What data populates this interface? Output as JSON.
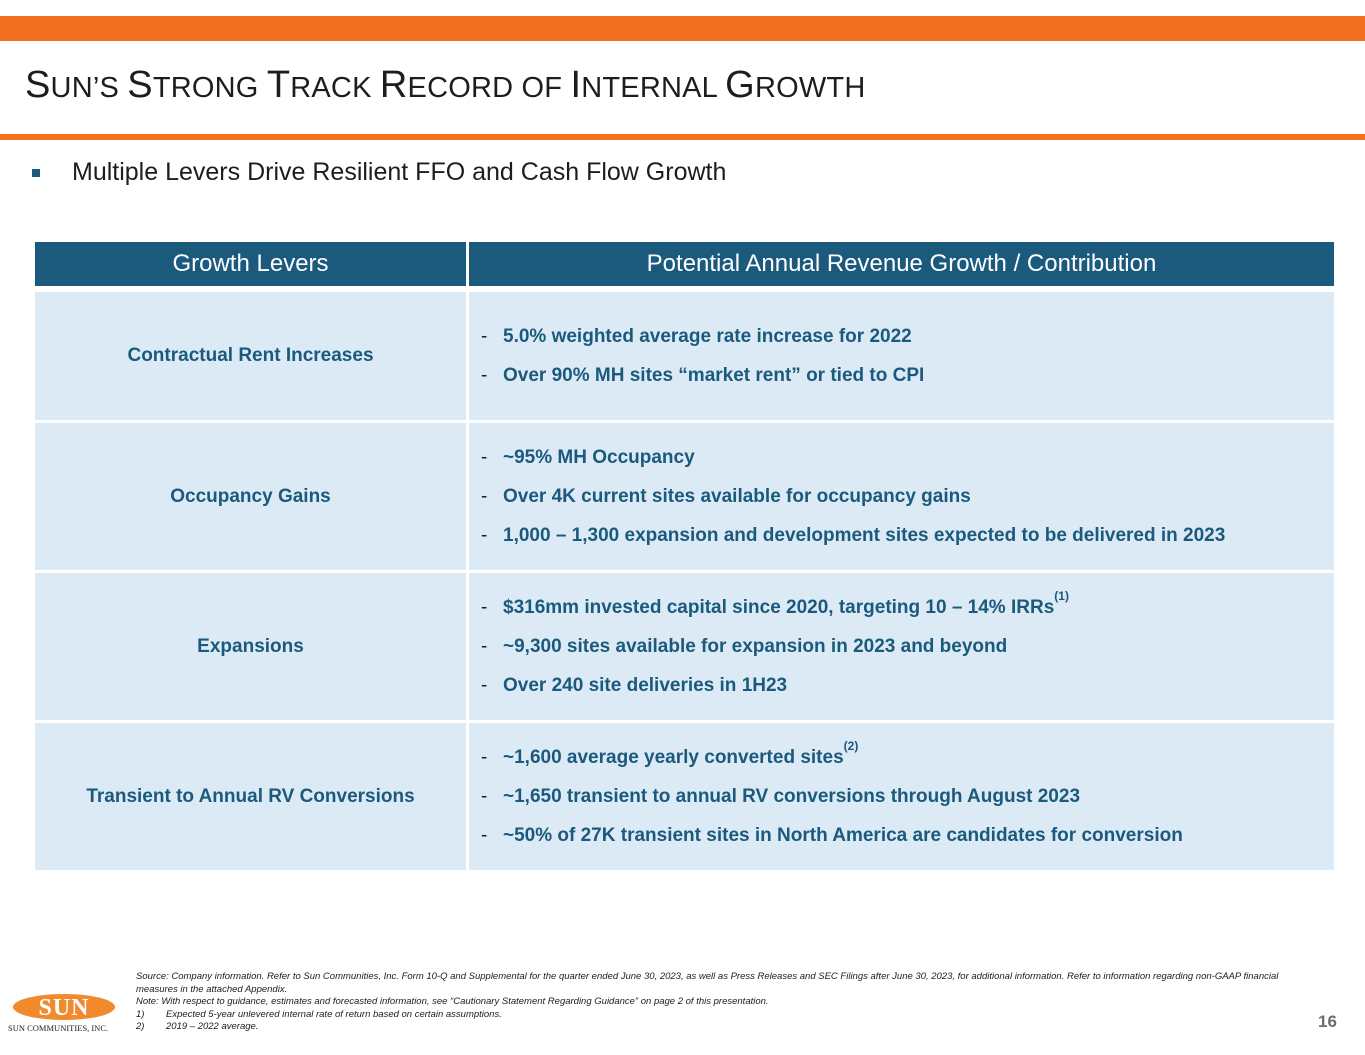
{
  "colors": {
    "accent": "#f37021",
    "header_fill": "#1b5a7d",
    "row_fill": "#dceaf5",
    "text_blue": "#1b5a7d"
  },
  "title": {
    "parts": [
      {
        "cap": "S",
        "rest": "UN’S "
      },
      {
        "cap": "S",
        "rest": "TRONG "
      },
      {
        "cap": "T",
        "rest": "RACK "
      },
      {
        "cap": "R",
        "rest": "ECORD OF "
      },
      {
        "cap": "I",
        "rest": "NTERNAL "
      },
      {
        "cap": "G",
        "rest": "ROWTH"
      }
    ]
  },
  "bullet": {
    "icon": "square-bullet-icon",
    "text": "Multiple Levers Drive Resilient FFO and Cash Flow Growth"
  },
  "table": {
    "headers": [
      "Growth Levers",
      "Potential Annual Revenue Growth / Contribution"
    ],
    "rows": [
      {
        "lever": "Contractual Rent Increases",
        "points": [
          {
            "text": "5.0% weighted average rate increase for 2022",
            "sup": ""
          },
          {
            "text": "Over 90% MH sites “market rent” or tied to CPI",
            "sup": ""
          }
        ]
      },
      {
        "lever": "Occupancy Gains",
        "points": [
          {
            "text": "~95% MH Occupancy",
            "sup": ""
          },
          {
            "text": "Over 4K current sites available for occupancy gains",
            "sup": ""
          },
          {
            "text": "1,000 – 1,300 expansion and development sites expected to be delivered in 2023",
            "sup": ""
          }
        ]
      },
      {
        "lever": "Expansions",
        "points": [
          {
            "text": "$316mm invested capital since 2020, targeting 10 – 14% IRRs",
            "sup": "(1)"
          },
          {
            "text": "~9,300 sites available for expansion in 2023 and beyond",
            "sup": ""
          },
          {
            "text": "Over 240 site deliveries in 1H23",
            "sup": ""
          }
        ]
      },
      {
        "lever": "Transient to Annual RV Conversions",
        "points": [
          {
            "text": "~1,600 average yearly converted sites",
            "sup": "(2)"
          },
          {
            "text": "~1,650 transient to annual RV conversions through August 2023",
            "sup": ""
          },
          {
            "text": "~50% of 27K transient sites in North America are candidates for conversion",
            "sup": ""
          }
        ]
      }
    ]
  },
  "footnotes": {
    "source": "Source: Company information. Refer to Sun Communities, Inc. Form 10-Q and Supplemental for the quarter ended June 30, 2023, as well as Press Releases and SEC Filings after June 30, 2023, for additional information. Refer to information regarding non-GAAP financial measures in the attached Appendix.",
    "note": "Note: With respect to guidance, estimates and forecasted information, see “Cautionary Statement Regarding Guidance” on page 2 of this presentation.",
    "items": [
      {
        "num": "1)",
        "text": "Expected 5-year unlevered internal rate of return based on certain assumptions."
      },
      {
        "num": "2)",
        "text": "2019 – 2022 average."
      }
    ]
  },
  "logo": {
    "word": "SUN",
    "tagline": "SUN COMMUNITIES, INC."
  },
  "page_number": "16"
}
